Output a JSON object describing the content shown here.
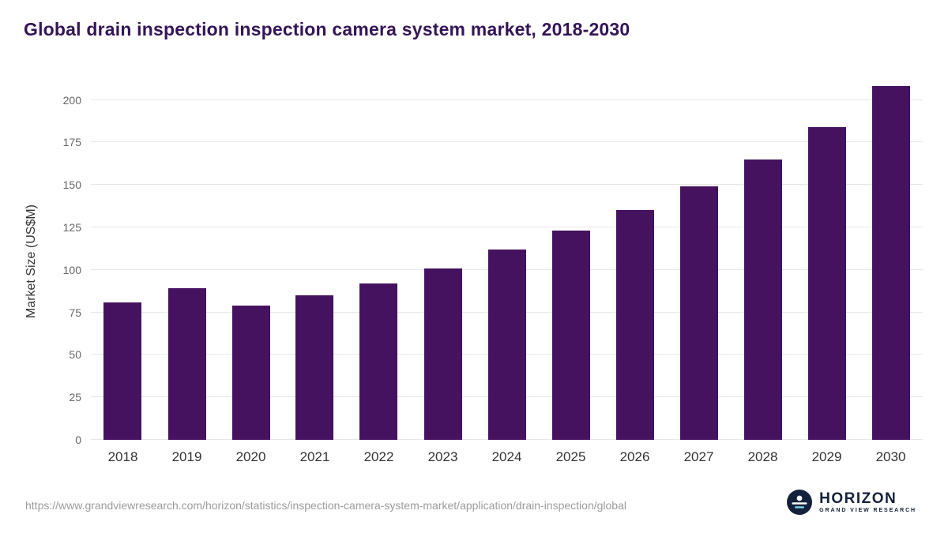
{
  "title": "Global drain inspection inspection camera system market, 2018-2030",
  "source_url": "https://www.grandviewresearch.com/horizon/statistics/inspection-camera-system-market/application/drain-inspection/global",
  "logo": {
    "name": "HORIZON",
    "subtitle": "GRAND VIEW RESEARCH"
  },
  "colors": {
    "bar": "#44125f",
    "title": "#341457",
    "grid": "#e7e7e7",
    "axis_text": "#666666",
    "x_label": "#333333",
    "url_text": "#9b9b9b",
    "logo_navy": "#14213c"
  },
  "chart_data": {
    "type": "bar",
    "title": "Global drain inspection inspection camera system market, 2018-2030",
    "categories": [
      "2018",
      "2019",
      "2020",
      "2021",
      "2022",
      "2023",
      "2024",
      "2025",
      "2026",
      "2027",
      "2028",
      "2029",
      "2030"
    ],
    "values": [
      81,
      89,
      79,
      85,
      92,
      101,
      112,
      123,
      135,
      149,
      165,
      184,
      208
    ],
    "xlabel": "",
    "ylabel": "Market Size (US$M)",
    "ylim": [
      0,
      210
    ],
    "yticks": [
      0,
      25,
      50,
      75,
      100,
      125,
      150,
      175,
      200
    ],
    "grid": true,
    "legend_position": "none",
    "bar_color": "#44125f"
  }
}
